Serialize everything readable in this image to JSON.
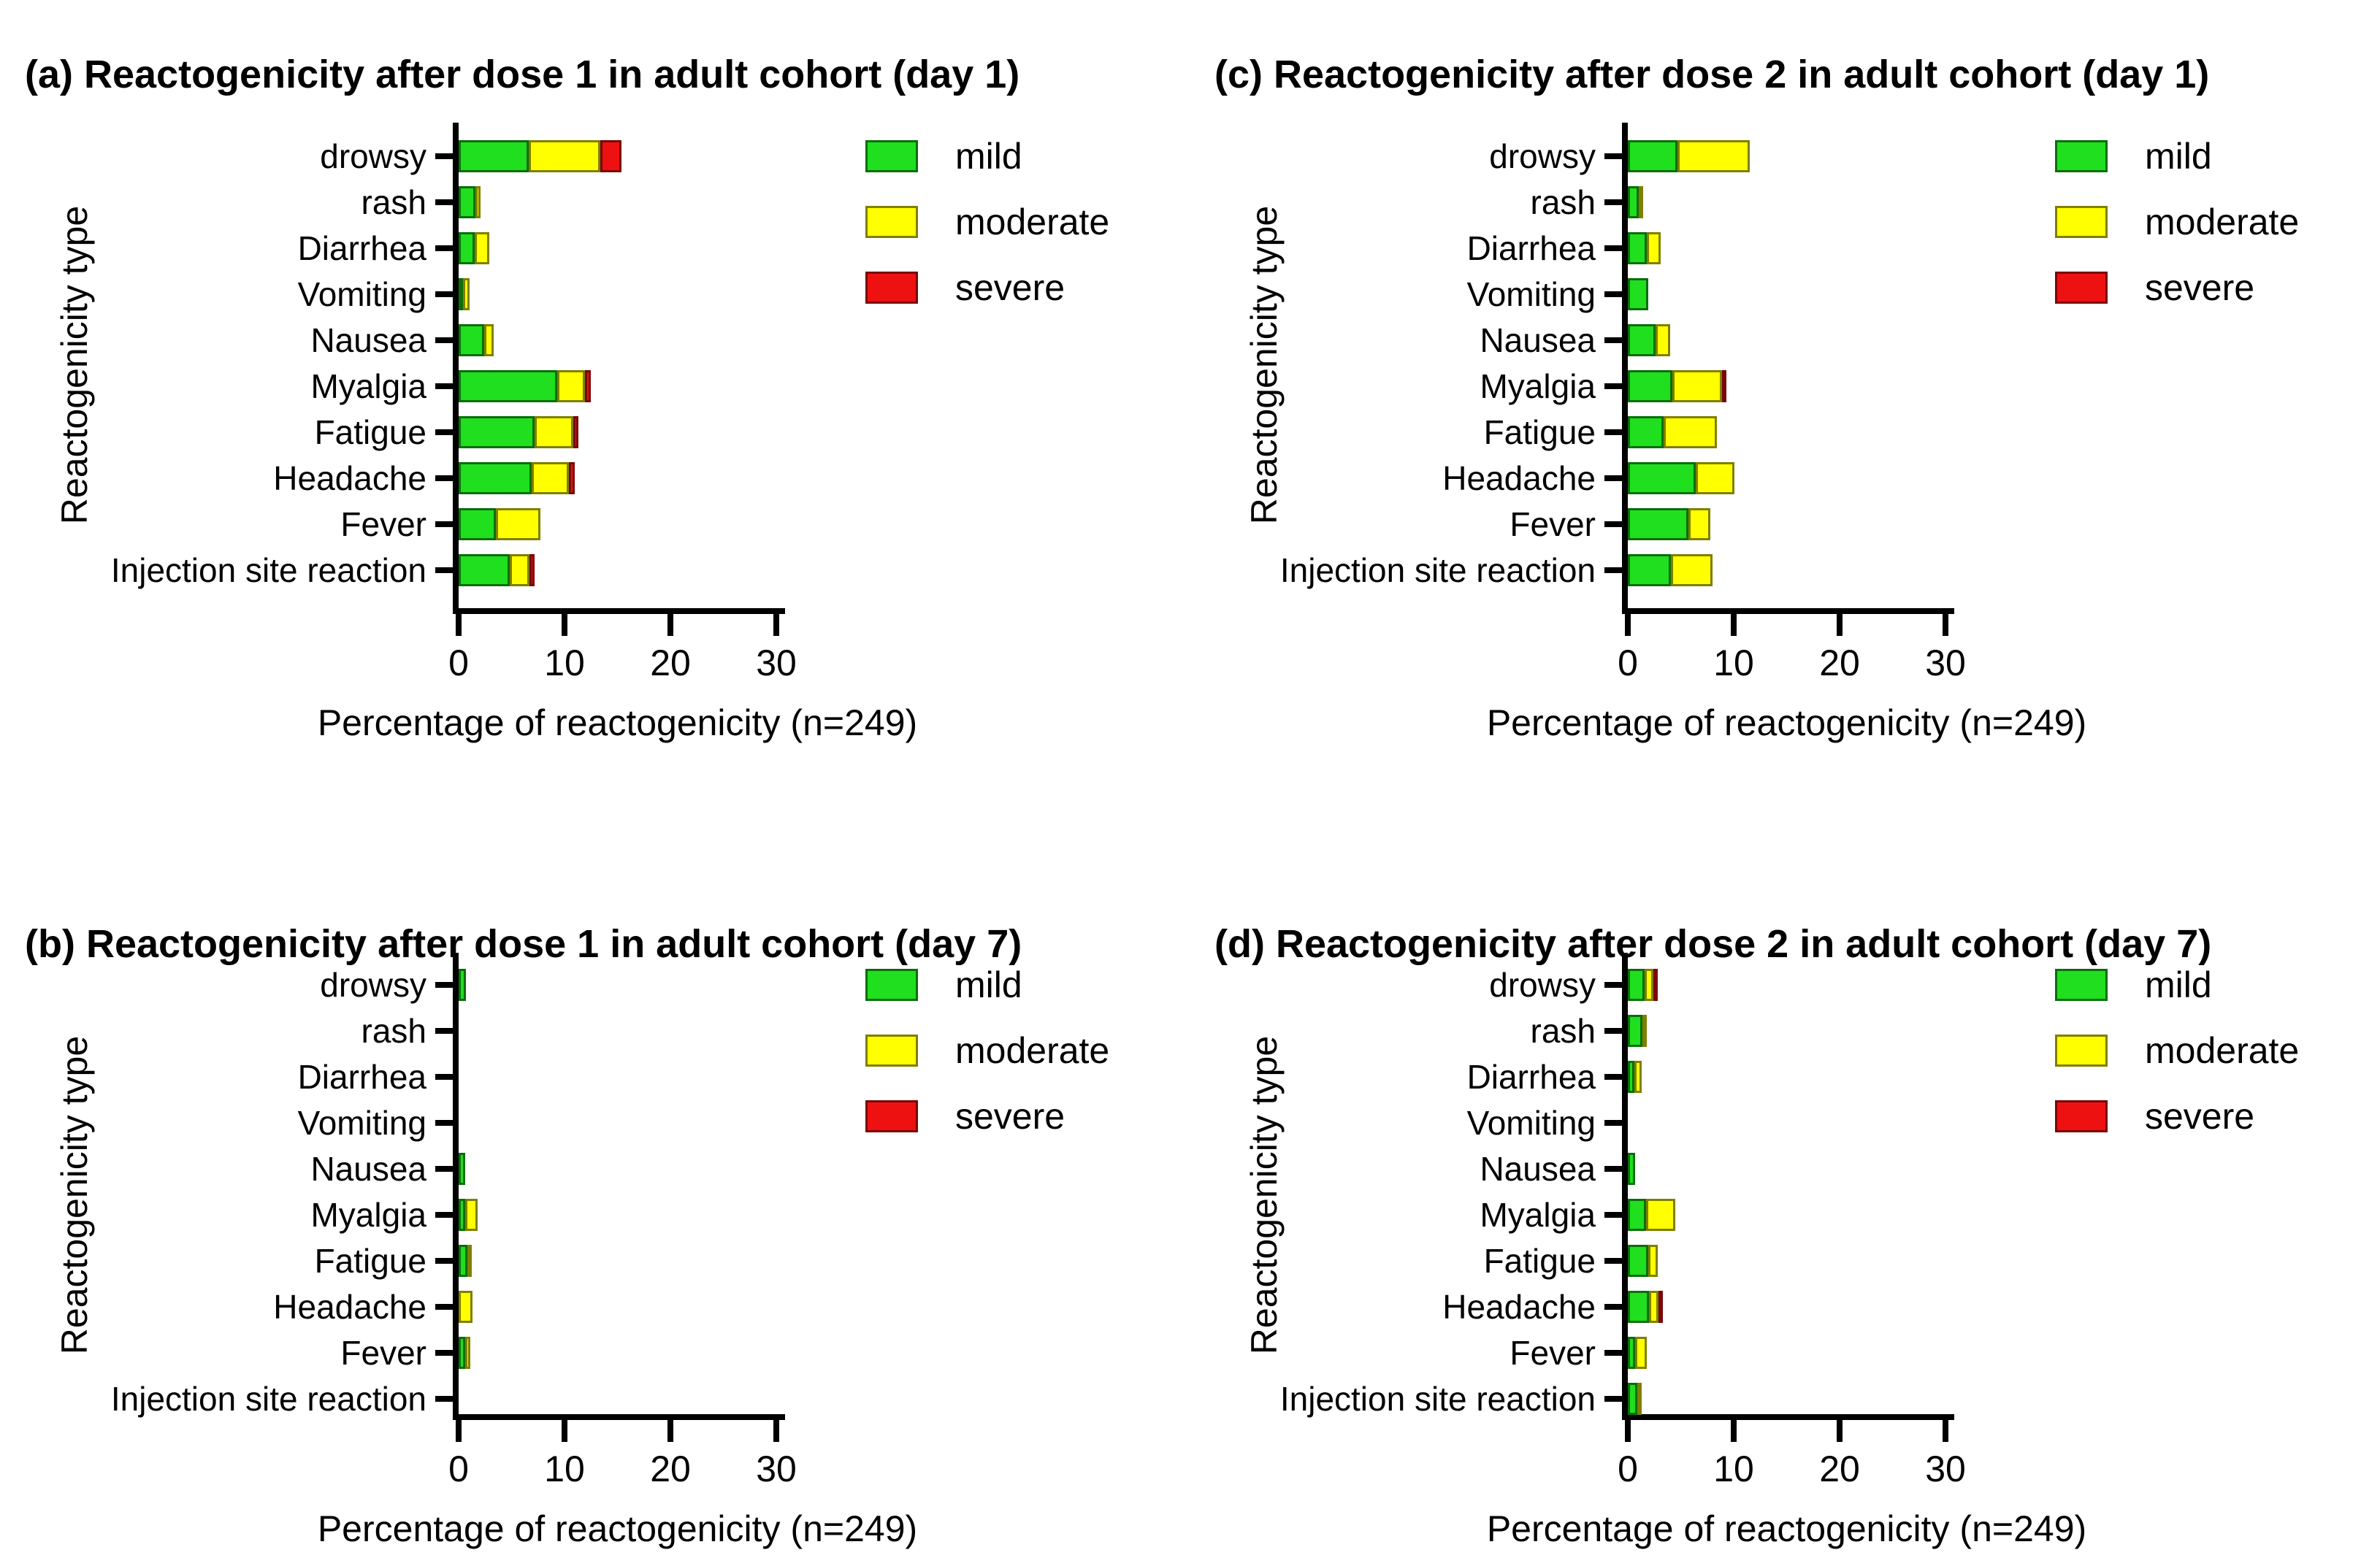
{
  "figure": {
    "background": "#ffffff",
    "text_color": "#000000",
    "layout": "2x2 grid of stacked horizontal bar charts",
    "sample_size_note": "n=249"
  },
  "chart_data": [
    {
      "id": "a",
      "grid_position": "top-left",
      "type": "bar",
      "orientation": "horizontal",
      "stacked": true,
      "title": "(a) Reactogenicity after dose 1 in adult cohort (day 1)",
      "xlabel": "Percentage of reactogenicity (n=249)",
      "ylabel": "Reactogenicity type",
      "xlim": [
        0,
        30
      ],
      "xticks": [
        0,
        10,
        20,
        30
      ],
      "legend_position": "top-right",
      "categories": [
        "drowsy",
        "rash",
        "Diarrhea",
        "Vomiting",
        "Nausea",
        "Myalgia",
        "Fatigue",
        "Headache",
        "Fever",
        "Injection site reaction"
      ],
      "series": [
        {
          "name": "mild",
          "color": "#1fdf1f",
          "border": "#0b6e0b",
          "values": [
            6.6,
            1.6,
            1.5,
            0.4,
            2.4,
            9.3,
            7.2,
            6.9,
            3.5,
            4.8
          ]
        },
        {
          "name": "moderate",
          "color": "#ffff00",
          "border": "#7f7f00",
          "values": [
            6.8,
            0.5,
            1.4,
            0.6,
            0.9,
            2.6,
            3.6,
            3.5,
            4.2,
            1.9
          ]
        },
        {
          "name": "severe",
          "color": "#ee1111",
          "border": "#7a0707",
          "values": [
            2.0,
            0,
            0,
            0,
            0,
            0.6,
            0.5,
            0.6,
            0,
            0.5
          ]
        }
      ]
    },
    {
      "id": "c",
      "grid_position": "top-right",
      "type": "bar",
      "orientation": "horizontal",
      "stacked": true,
      "title": "(c) Reactogenicity after dose 2 in adult cohort (day 1)",
      "xlabel": "Percentage of reactogenicity (n=249)",
      "ylabel": "Reactogenicity type",
      "xlim": [
        0,
        30
      ],
      "xticks": [
        0,
        10,
        20,
        30
      ],
      "legend_position": "top-right",
      "categories": [
        "drowsy",
        "rash",
        "Diarrhea",
        "Vomiting",
        "Nausea",
        "Myalgia",
        "Fatigue",
        "Headache",
        "Fever",
        "Injection site reaction"
      ],
      "series": [
        {
          "name": "mild",
          "color": "#1fdf1f",
          "border": "#0b6e0b",
          "values": [
            4.7,
            1.0,
            1.8,
            1.9,
            2.6,
            4.2,
            3.4,
            6.4,
            5.7,
            4.1
          ]
        },
        {
          "name": "moderate",
          "color": "#ffff00",
          "border": "#7f7f00",
          "values": [
            6.8,
            0.4,
            1.3,
            0,
            1.4,
            4.7,
            5.0,
            3.7,
            2.1,
            3.9
          ]
        },
        {
          "name": "severe",
          "color": "#ee1111",
          "border": "#7a0707",
          "values": [
            0,
            0,
            0,
            0,
            0,
            0.4,
            0,
            0,
            0,
            0
          ]
        }
      ]
    },
    {
      "id": "b",
      "grid_position": "bottom-left",
      "type": "bar",
      "orientation": "horizontal",
      "stacked": true,
      "title": "(b) Reactogenicity after dose 1 in adult cohort (day 7)",
      "xlabel": "Percentage of reactogenicity (n=249)",
      "ylabel": "Reactogenicity type",
      "xlim": [
        0,
        30
      ],
      "xticks": [
        0,
        10,
        20,
        30
      ],
      "legend_position": "top-right",
      "categories": [
        "drowsy",
        "rash",
        "Diarrhea",
        "Vomiting",
        "Nausea",
        "Myalgia",
        "Fatigue",
        "Headache",
        "Fever",
        "Injection site reaction"
      ],
      "series": [
        {
          "name": "mild",
          "color": "#1fdf1f",
          "border": "#0b6e0b",
          "values": [
            0.7,
            0,
            0,
            0,
            0.6,
            0.6,
            0.8,
            0,
            0.6,
            0
          ]
        },
        {
          "name": "moderate",
          "color": "#ffff00",
          "border": "#7f7f00",
          "values": [
            0,
            0,
            0,
            0,
            0,
            1.2,
            0.3,
            1.3,
            0.5,
            0
          ]
        },
        {
          "name": "severe",
          "color": "#ee1111",
          "border": "#7a0707",
          "values": [
            0,
            0,
            0,
            0,
            0,
            0,
            0,
            0,
            0,
            0
          ]
        }
      ]
    },
    {
      "id": "d",
      "grid_position": "bottom-right",
      "type": "bar",
      "orientation": "horizontal",
      "stacked": true,
      "title": "(d) Reactogenicity after dose 2 in adult cohort (day 7)",
      "xlabel": "Percentage of reactogenicity (n=249)",
      "ylabel": "Reactogenicity type",
      "xlim": [
        0,
        30
      ],
      "xticks": [
        0,
        10,
        20,
        30
      ],
      "legend_position": "top-right",
      "categories": [
        "drowsy",
        "rash",
        "Diarrhea",
        "Vomiting",
        "Nausea",
        "Myalgia",
        "Fatigue",
        "Headache",
        "Fever",
        "Injection site reaction"
      ],
      "series": [
        {
          "name": "mild",
          "color": "#1fdf1f",
          "border": "#0b6e0b",
          "values": [
            1.6,
            1.4,
            0.6,
            0,
            0.7,
            1.7,
            1.9,
            2.0,
            0.7,
            0.9
          ]
        },
        {
          "name": "moderate",
          "color": "#ffff00",
          "border": "#7f7f00",
          "values": [
            0.8,
            0.4,
            0.7,
            0,
            0,
            2.8,
            0.9,
            0.9,
            1.1,
            0.4
          ]
        },
        {
          "name": "severe",
          "color": "#ee1111",
          "border": "#7a0707",
          "values": [
            0.3,
            0,
            0,
            0,
            0,
            0,
            0,
            0.4,
            0,
            0
          ]
        }
      ]
    }
  ]
}
